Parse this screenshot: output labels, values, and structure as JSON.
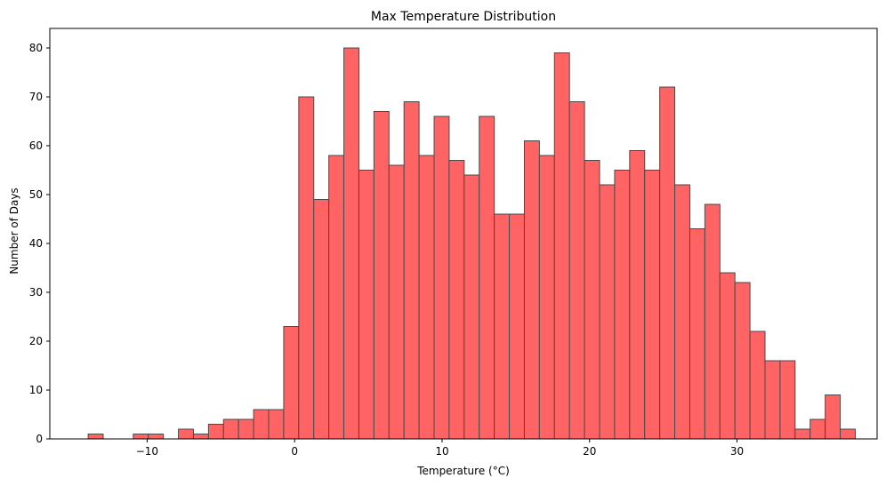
{
  "chart_data": {
    "type": "bar",
    "title": "Max Temperature Distribution",
    "xlabel": "Temperature (°C)",
    "ylabel": "Number of Days",
    "bin_start": -14.0,
    "bin_width": 1.02,
    "counts": [
      1,
      0,
      0,
      1,
      1,
      0,
      2,
      1,
      3,
      4,
      4,
      6,
      6,
      23,
      70,
      49,
      58,
      80,
      55,
      67,
      56,
      69,
      58,
      66,
      57,
      54,
      66,
      46,
      46,
      61,
      58,
      79,
      69,
      57,
      52,
      55,
      59,
      55,
      72,
      52,
      43,
      48,
      34,
      32,
      22,
      16,
      16,
      2,
      4,
      9,
      2
    ],
    "xlim": [
      -16.6,
      39.5
    ],
    "ylim": [
      0,
      84
    ],
    "xticks": [
      -10,
      0,
      10,
      20,
      30
    ],
    "xtick_labels": [
      "−10",
      "0",
      "10",
      "20",
      "30"
    ],
    "yticks": [
      0,
      10,
      20,
      30,
      40,
      50,
      60,
      70,
      80
    ],
    "ytick_labels": [
      "0",
      "10",
      "20",
      "30",
      "40",
      "50",
      "60",
      "70",
      "80"
    ],
    "bar_color": "#ff6363",
    "edge_color": "#4a4a4a",
    "grid": false,
    "legend": false
  }
}
